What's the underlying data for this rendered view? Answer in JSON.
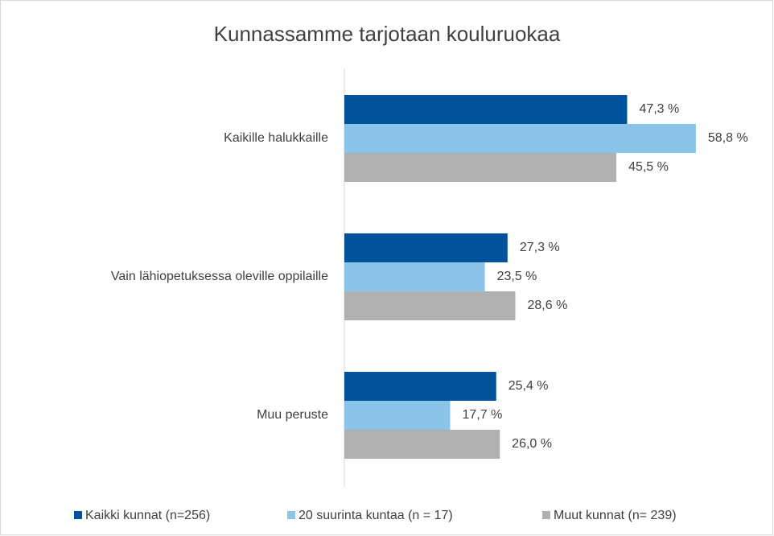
{
  "chart_data": {
    "type": "hbar",
    "title": "Kunnassamme tarjotaan kouluruokaa",
    "categories": [
      "Kaikille halukkaille",
      "Vain lähiopetuksessa oleville oppilaille",
      "Muu peruste"
    ],
    "series": [
      {
        "name": "Kaikki kunnat (n=256)",
        "color": "#00539b",
        "values": [
          47.3,
          27.3,
          25.4
        ],
        "value_labels": [
          "47,3 %",
          "27,3 %",
          "25,4 %"
        ]
      },
      {
        "name": "20 suurinta kuntaa (n = 17)",
        "color": "#8cc3e8",
        "values": [
          58.8,
          23.5,
          17.7
        ],
        "value_labels": [
          "58,8 %",
          "23,5 %",
          "17,7 %"
        ]
      },
      {
        "name": "Muut kunnat (n= 239)",
        "color": "#b0b0b0",
        "values": [
          45.5,
          28.6,
          26.0
        ],
        "value_labels": [
          "45,5 %",
          "28,6 %",
          "26,0 %"
        ]
      }
    ],
    "legend": "bottom"
  }
}
